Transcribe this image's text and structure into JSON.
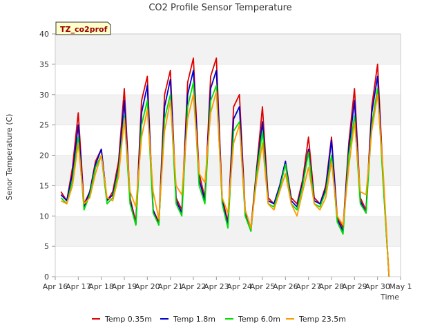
{
  "chart_data": {
    "type": "line",
    "title": "CO2 Profile Sensor Temperature",
    "xlabel": "Time",
    "ylabel": "Senor Temperature (C)",
    "station_label": "TZ_co2prof",
    "xlim": [
      "Apr 16",
      "May 1"
    ],
    "ylim": [
      0,
      40
    ],
    "x_ticks": [
      "Apr 16",
      "Apr 17",
      "Apr 18",
      "Apr 19",
      "Apr 20",
      "Apr 21",
      "Apr 22",
      "Apr 23",
      "Apr 24",
      "Apr 25",
      "Apr 26",
      "Apr 27",
      "Apr 28",
      "Apr 29",
      "Apr 30",
      "May 1"
    ],
    "y_ticks": [
      0,
      5,
      10,
      15,
      20,
      25,
      30,
      35,
      40
    ],
    "grid": "horizontal bands",
    "legend_position": "bottom",
    "x": [
      16.25,
      16.5,
      16.75,
      17.0,
      17.25,
      17.5,
      17.75,
      18.0,
      18.25,
      18.5,
      18.75,
      19.0,
      19.25,
      19.5,
      19.75,
      20.0,
      20.25,
      20.5,
      20.75,
      21.0,
      21.25,
      21.5,
      21.75,
      22.0,
      22.25,
      22.5,
      22.75,
      23.0,
      23.25,
      23.5,
      23.75,
      24.0,
      24.25,
      24.5,
      24.75,
      25.0,
      25.25,
      25.5,
      25.75,
      26.0,
      26.25,
      26.5,
      26.75,
      27.0,
      27.25,
      27.5,
      27.75,
      28.0,
      28.25,
      28.5,
      28.75,
      29.0,
      29.25,
      29.5,
      29.75,
      30.0,
      30.25,
      30.5
    ],
    "series": [
      {
        "name": "Temp 0.35m",
        "color": "#dd0000",
        "values": [
          14,
          12.5,
          18,
          27,
          12,
          14,
          19,
          21,
          12.5,
          14,
          19,
          31,
          13,
          9,
          29,
          33,
          11,
          9,
          30,
          34,
          13,
          11,
          32,
          36,
          17,
          13,
          33,
          36,
          13,
          9,
          28,
          30,
          11,
          8,
          18,
          28,
          13,
          12,
          15,
          19,
          13,
          12,
          16,
          23,
          13,
          12,
          15,
          23,
          10,
          8,
          22,
          31,
          13,
          11,
          28,
          35,
          16,
          0
        ]
      },
      {
        "name": "Temp 1.8m",
        "color": "#0000cc",
        "values": [
          13.5,
          12.5,
          17,
          25,
          11.5,
          14,
          18.5,
          21,
          12.5,
          13.5,
          18,
          29,
          12.5,
          8.5,
          27,
          31.5,
          11,
          8.5,
          28,
          32.5,
          12.5,
          10.5,
          30,
          34,
          16,
          12.5,
          31,
          34,
          12.5,
          8.5,
          26,
          28,
          10.5,
          7.5,
          17.5,
          25.5,
          12.5,
          12,
          15,
          19,
          12.5,
          11.5,
          15.5,
          21,
          12.5,
          12,
          14.5,
          22.5,
          9.5,
          7.5,
          21,
          29,
          12.5,
          10.5,
          27,
          33,
          15.5,
          0
        ]
      },
      {
        "name": "Temp 6.0m",
        "color": "#00dd00",
        "values": [
          13,
          12,
          16,
          23,
          11,
          13.5,
          18,
          20,
          12,
          13,
          17.5,
          26.5,
          12,
          8.5,
          25,
          29,
          10.5,
          8.5,
          26,
          30,
          12,
          10,
          28,
          32,
          15,
          12,
          29,
          31.5,
          12,
          8,
          24,
          25.5,
          10,
          7.5,
          17,
          24,
          12,
          11.5,
          14.5,
          18.5,
          12,
          11,
          15,
          20.5,
          12,
          11.5,
          14,
          20,
          9,
          7,
          20,
          26.5,
          12,
          10.5,
          25,
          31,
          15,
          0
        ]
      },
      {
        "name": "Temp 23.5m",
        "color": "#ff9900",
        "values": [
          12.5,
          12,
          15,
          22,
          12,
          13,
          17,
          20,
          13,
          12.5,
          16.5,
          26,
          14,
          11.5,
          23,
          27.5,
          14,
          9.5,
          24,
          29,
          15,
          13.5,
          26,
          30,
          17,
          15.5,
          27,
          30.5,
          13,
          10.5,
          22,
          25,
          11,
          8,
          16,
          22,
          12,
          11,
          14,
          17,
          12,
          10,
          14,
          18,
          12,
          11,
          13,
          19,
          10,
          8.5,
          18,
          25.5,
          14,
          13.5,
          24,
          30,
          17,
          0
        ]
      }
    ]
  }
}
